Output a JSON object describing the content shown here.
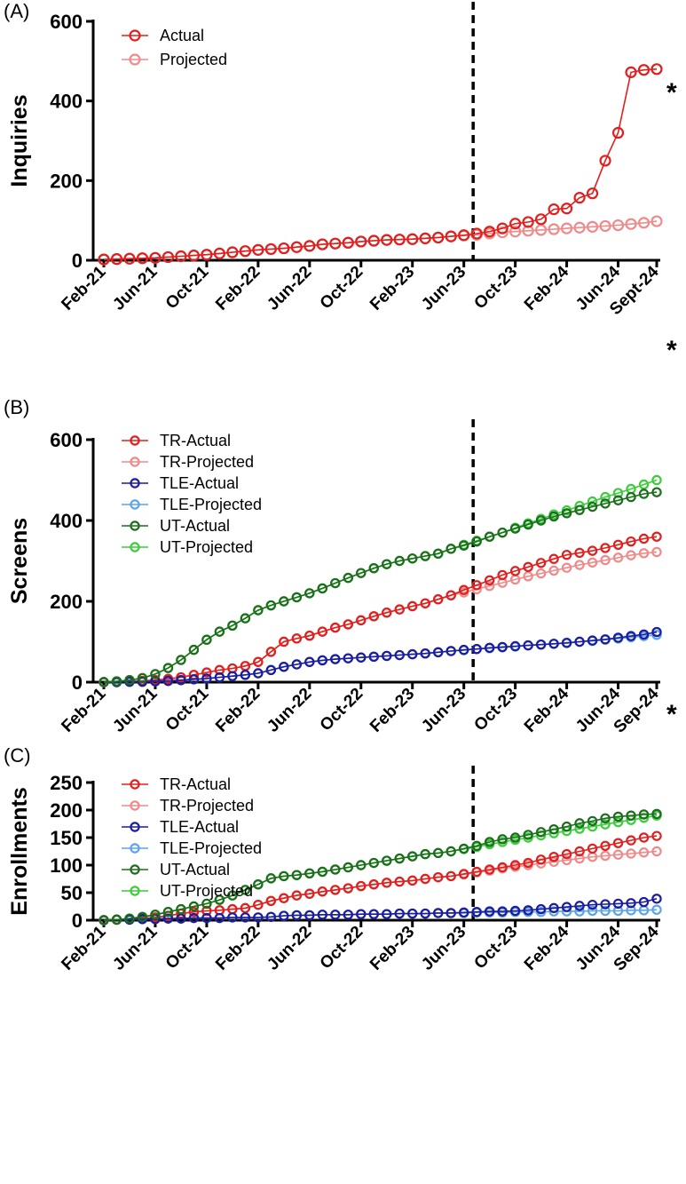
{
  "chart_data": [
    {
      "type": "line",
      "panel_label": "(A)",
      "ylabel": "Inquiries",
      "ylim": [
        0,
        600
      ],
      "yticks": [
        0,
        200,
        400,
        600
      ],
      "xtick_labels": [
        "Feb-21",
        "Jun-21",
        "Oct-21",
        "Feb-22",
        "Jun-22",
        "Oct-22",
        "Feb-23",
        "Jun-23",
        "Oct-23",
        "Feb-24",
        "Jun-24",
        "Sept-24"
      ],
      "cutoff_month": "Jul-23",
      "annotation": "*",
      "legend": "top-left",
      "series": [
        {
          "name": "Actual",
          "color": "#e0201e",
          "values": [
            2,
            3,
            4,
            5,
            6,
            8,
            10,
            12,
            14,
            17,
            20,
            23,
            26,
            28,
            30,
            33,
            36,
            40,
            42,
            44,
            47,
            49,
            51,
            52,
            53,
            55,
            57,
            60,
            63,
            67,
            72,
            80,
            92,
            96,
            103,
            128,
            130,
            157,
            168,
            250,
            320,
            472,
            478,
            480
          ]
        },
        {
          "name": "Projected",
          "color": "#f08a8a",
          "values": [
            2,
            3,
            4,
            5,
            6,
            8,
            10,
            12,
            14,
            17,
            20,
            23,
            26,
            28,
            30,
            33,
            36,
            40,
            42,
            44,
            47,
            49,
            51,
            52,
            53,
            55,
            57,
            60,
            62,
            64,
            67,
            70,
            72,
            74,
            76,
            78,
            80,
            82,
            84,
            86,
            88,
            91,
            94,
            98
          ]
        }
      ]
    },
    {
      "type": "line",
      "panel_label": "(B)",
      "ylabel": "Screens",
      "ylim": [
        0,
        600
      ],
      "yticks": [
        0,
        200,
        400,
        600
      ],
      "xtick_labels": [
        "Feb-21",
        "Jun-21",
        "Oct-21",
        "Feb-22",
        "Jun-22",
        "Oct-22",
        "Feb-23",
        "Jun-23",
        "Oct-23",
        "Feb-24",
        "Jun-24",
        "Sep-24"
      ],
      "cutoff_month": "Jul-23",
      "annotation": "*",
      "legend": "top-left",
      "series": [
        {
          "name": "TR-Actual",
          "color": "#e0201e",
          "values": [
            0,
            1,
            2,
            3,
            5,
            8,
            12,
            18,
            24,
            30,
            34,
            40,
            50,
            75,
            100,
            108,
            115,
            125,
            135,
            143,
            153,
            163,
            172,
            180,
            188,
            195,
            205,
            215,
            228,
            240,
            252,
            265,
            275,
            285,
            295,
            305,
            315,
            320,
            325,
            332,
            340,
            348,
            355,
            360
          ]
        },
        {
          "name": "TR-Projected",
          "color": "#f08a8a",
          "values": [
            0,
            1,
            2,
            3,
            5,
            8,
            12,
            18,
            24,
            30,
            34,
            40,
            50,
            75,
            100,
            108,
            115,
            125,
            135,
            143,
            153,
            163,
            172,
            180,
            188,
            195,
            205,
            215,
            222,
            230,
            238,
            246,
            254,
            262,
            269,
            276,
            283,
            290,
            296,
            302,
            308,
            314,
            319,
            322
          ]
        },
        {
          "name": "TLE-Actual",
          "color": "#1c1c9e",
          "values": [
            0,
            0,
            1,
            1,
            2,
            3,
            5,
            7,
            9,
            12,
            15,
            18,
            22,
            30,
            38,
            44,
            50,
            54,
            57,
            59,
            61,
            63,
            65,
            67,
            69,
            71,
            74,
            77,
            80,
            82,
            85,
            87,
            89,
            91,
            93,
            95,
            97,
            100,
            103,
            106,
            110,
            114,
            118,
            124
          ]
        },
        {
          "name": "TLE-Projected",
          "color": "#5ba4e8",
          "values": [
            0,
            0,
            1,
            1,
            2,
            3,
            5,
            7,
            9,
            12,
            15,
            18,
            22,
            30,
            38,
            44,
            50,
            54,
            57,
            59,
            61,
            63,
            65,
            67,
            69,
            71,
            74,
            77,
            79,
            82,
            84,
            86,
            88,
            91,
            93,
            95,
            98,
            100,
            102,
            105,
            108,
            111,
            114,
            117
          ]
        },
        {
          "name": "UT-Actual",
          "color": "#1b6e1b",
          "values": [
            0,
            2,
            5,
            10,
            20,
            35,
            55,
            80,
            105,
            125,
            140,
            158,
            178,
            190,
            200,
            210,
            220,
            232,
            245,
            258,
            270,
            282,
            292,
            300,
            306,
            312,
            318,
            330,
            338,
            348,
            360,
            370,
            380,
            390,
            400,
            410,
            418,
            426,
            434,
            442,
            450,
            458,
            466,
            470
          ]
        },
        {
          "name": "UT-Projected",
          "color": "#3ccc3c",
          "values": [
            0,
            2,
            5,
            10,
            20,
            35,
            55,
            80,
            105,
            125,
            140,
            158,
            178,
            190,
            200,
            210,
            220,
            232,
            245,
            258,
            270,
            282,
            292,
            300,
            306,
            312,
            318,
            330,
            340,
            350,
            360,
            370,
            382,
            393,
            404,
            415,
            425,
            436,
            447,
            458,
            468,
            478,
            489,
            500
          ]
        }
      ]
    },
    {
      "type": "line",
      "panel_label": "(C)",
      "ylabel": "Enrollments",
      "ylim": [
        0,
        250
      ],
      "yticks": [
        0,
        50,
        100,
        150,
        200,
        250
      ],
      "xtick_labels": [
        "Feb-21",
        "Jun-21",
        "Oct-21",
        "Feb-22",
        "Jun-22",
        "Oct-22",
        "Feb-23",
        "Jun-23",
        "Oct-23",
        "Feb-24",
        "Jun-24",
        "Sep-24"
      ],
      "cutoff_month": "Jul-23",
      "annotation": "*",
      "legend": "top-left",
      "series": [
        {
          "name": "TR-Actual",
          "color": "#e0201e",
          "values": [
            0,
            1,
            2,
            3,
            5,
            8,
            12,
            15,
            17,
            18,
            20,
            22,
            28,
            35,
            40,
            45,
            48,
            52,
            55,
            58,
            62,
            65,
            68,
            70,
            72,
            75,
            78,
            80,
            84,
            88,
            92,
            96,
            100,
            104,
            110,
            115,
            120,
            125,
            130,
            135,
            140,
            145,
            150,
            153
          ]
        },
        {
          "name": "TR-Projected",
          "color": "#f08a8a",
          "values": [
            0,
            1,
            2,
            3,
            5,
            8,
            12,
            15,
            17,
            18,
            20,
            22,
            28,
            35,
            40,
            45,
            48,
            52,
            55,
            58,
            62,
            65,
            68,
            70,
            72,
            75,
            78,
            80,
            83,
            87,
            90,
            94,
            97,
            100,
            103,
            106,
            109,
            112,
            115,
            117,
            119,
            121,
            123,
            125
          ]
        },
        {
          "name": "TLE-Actual",
          "color": "#1c1c9e",
          "values": [
            0,
            1,
            1,
            2,
            2,
            3,
            3,
            4,
            4,
            4,
            5,
            5,
            5,
            6,
            8,
            9,
            9,
            10,
            10,
            10,
            11,
            11,
            11,
            12,
            12,
            12,
            13,
            13,
            14,
            15,
            16,
            16,
            17,
            18,
            20,
            22,
            24,
            26,
            28,
            29,
            30,
            31,
            33,
            39
          ]
        },
        {
          "name": "TLE-Projected",
          "color": "#5ba4e8",
          "values": [
            0,
            1,
            1,
            2,
            2,
            3,
            3,
            4,
            4,
            4,
            5,
            5,
            5,
            6,
            8,
            9,
            9,
            10,
            10,
            10,
            11,
            11,
            11,
            12,
            12,
            12,
            13,
            13,
            13,
            14,
            14,
            14,
            15,
            15,
            15,
            16,
            16,
            16,
            17,
            17,
            17,
            18,
            18,
            19
          ]
        },
        {
          "name": "UT-Actual",
          "color": "#1b6e1b",
          "values": [
            0,
            1,
            3,
            6,
            10,
            15,
            20,
            25,
            30,
            37,
            45,
            55,
            65,
            76,
            80,
            82,
            85,
            88,
            92,
            96,
            100,
            104,
            108,
            112,
            116,
            120,
            122,
            125,
            130,
            135,
            142,
            147,
            150,
            155,
            160,
            165,
            170,
            176,
            180,
            185,
            188,
            190,
            192,
            193
          ]
        },
        {
          "name": "UT-Projected",
          "color": "#3ccc3c",
          "values": [
            0,
            1,
            3,
            6,
            10,
            15,
            20,
            25,
            30,
            37,
            45,
            55,
            65,
            76,
            80,
            82,
            85,
            88,
            92,
            96,
            100,
            104,
            108,
            112,
            116,
            120,
            122,
            125,
            129,
            133,
            138,
            142,
            146,
            150,
            154,
            158,
            162,
            166,
            170,
            174,
            178,
            182,
            186,
            190
          ]
        }
      ]
    }
  ]
}
